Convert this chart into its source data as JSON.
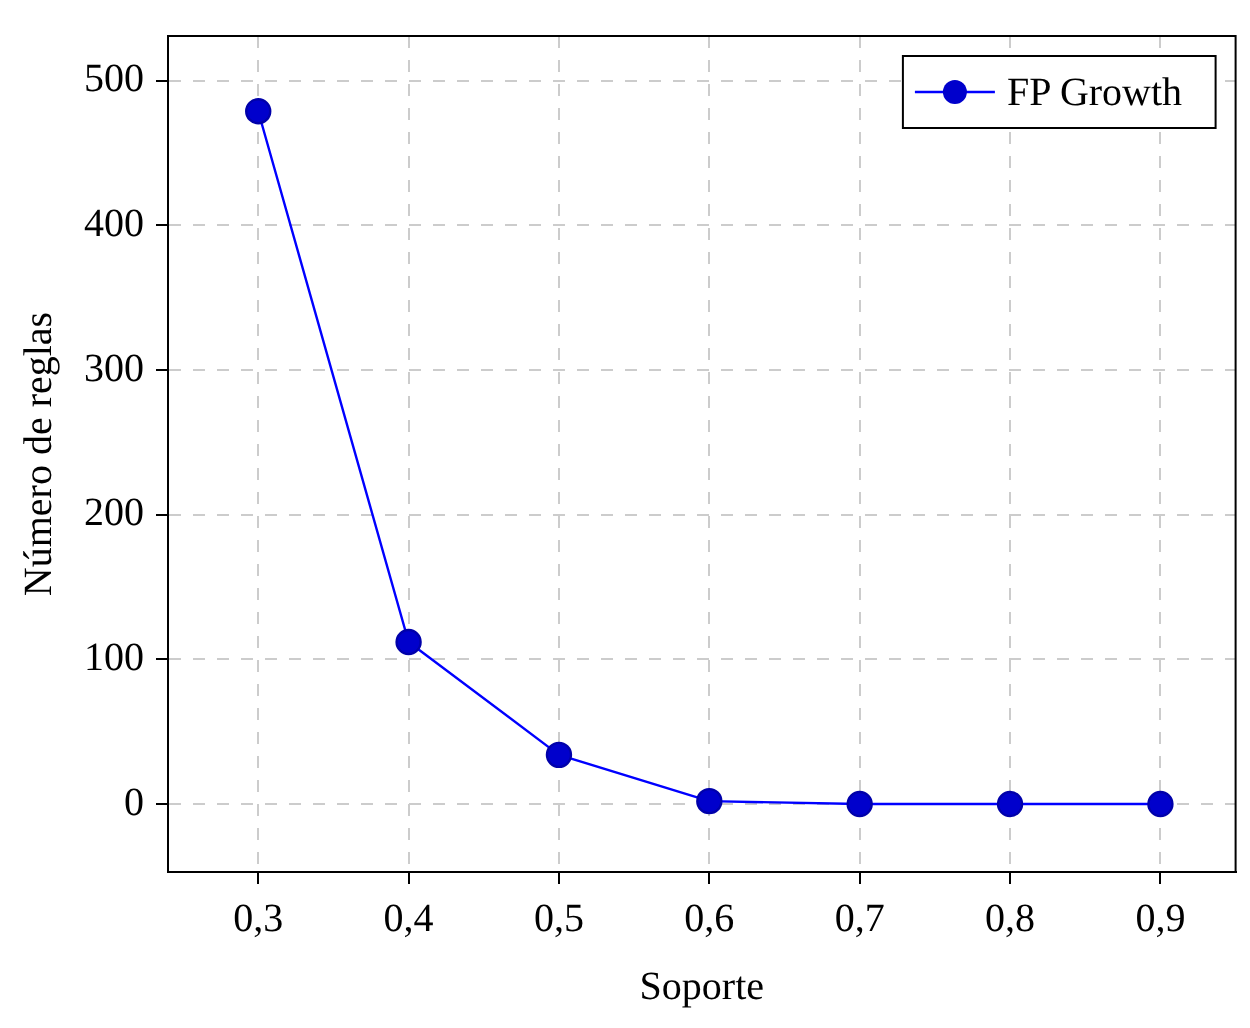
{
  "chart_data": {
    "type": "line",
    "xlabel": "Soporte",
    "ylabel": "Número de reglas",
    "x": [
      0.3,
      0.4,
      0.5,
      0.6,
      0.7,
      0.8,
      0.9
    ],
    "series": [
      {
        "name": "FP Growth",
        "color": "#0000ff",
        "values": [
          479,
          112,
          34,
          2,
          0,
          0,
          0
        ]
      }
    ],
    "xlim": [
      0.24,
      0.95
    ],
    "xticks": [
      {
        "value": 0.3,
        "label": "0,3"
      },
      {
        "value": 0.4,
        "label": "0,4"
      },
      {
        "value": 0.5,
        "label": "0,5"
      },
      {
        "value": 0.6,
        "label": "0,6"
      },
      {
        "value": 0.7,
        "label": "0,7"
      },
      {
        "value": 0.8,
        "label": "0,8"
      },
      {
        "value": 0.9,
        "label": "0,9"
      }
    ],
    "ylim": [
      -47,
      531
    ],
    "yticks": [
      0,
      100,
      200,
      300,
      400,
      500
    ],
    "grid": true,
    "legend": "top right",
    "marker": "circle",
    "line_style": "solid"
  }
}
